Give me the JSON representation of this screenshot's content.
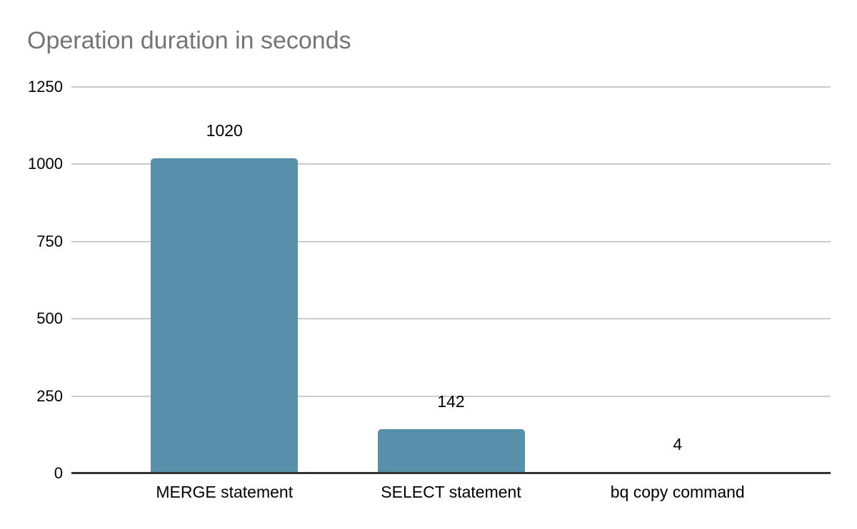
{
  "chart_data": {
    "type": "bar",
    "title": "Operation duration in seconds",
    "xlabel": "",
    "ylabel": "",
    "categories": [
      "MERGE statement",
      "SELECT statement",
      "bq copy command"
    ],
    "values": [
      1020,
      142,
      4
    ],
    "data_labels": [
      "1020",
      "142",
      "4"
    ],
    "ylim": [
      0,
      1250
    ],
    "yticks": [
      0,
      250,
      500,
      750,
      1000,
      1250
    ],
    "grid": true,
    "legend_position": "none",
    "colors": {
      "bar": "#5890ac",
      "gridline": "#cccccc",
      "axis_line": "#333333",
      "title": "#757575",
      "label": "#000000",
      "background": "#ffffff"
    }
  }
}
